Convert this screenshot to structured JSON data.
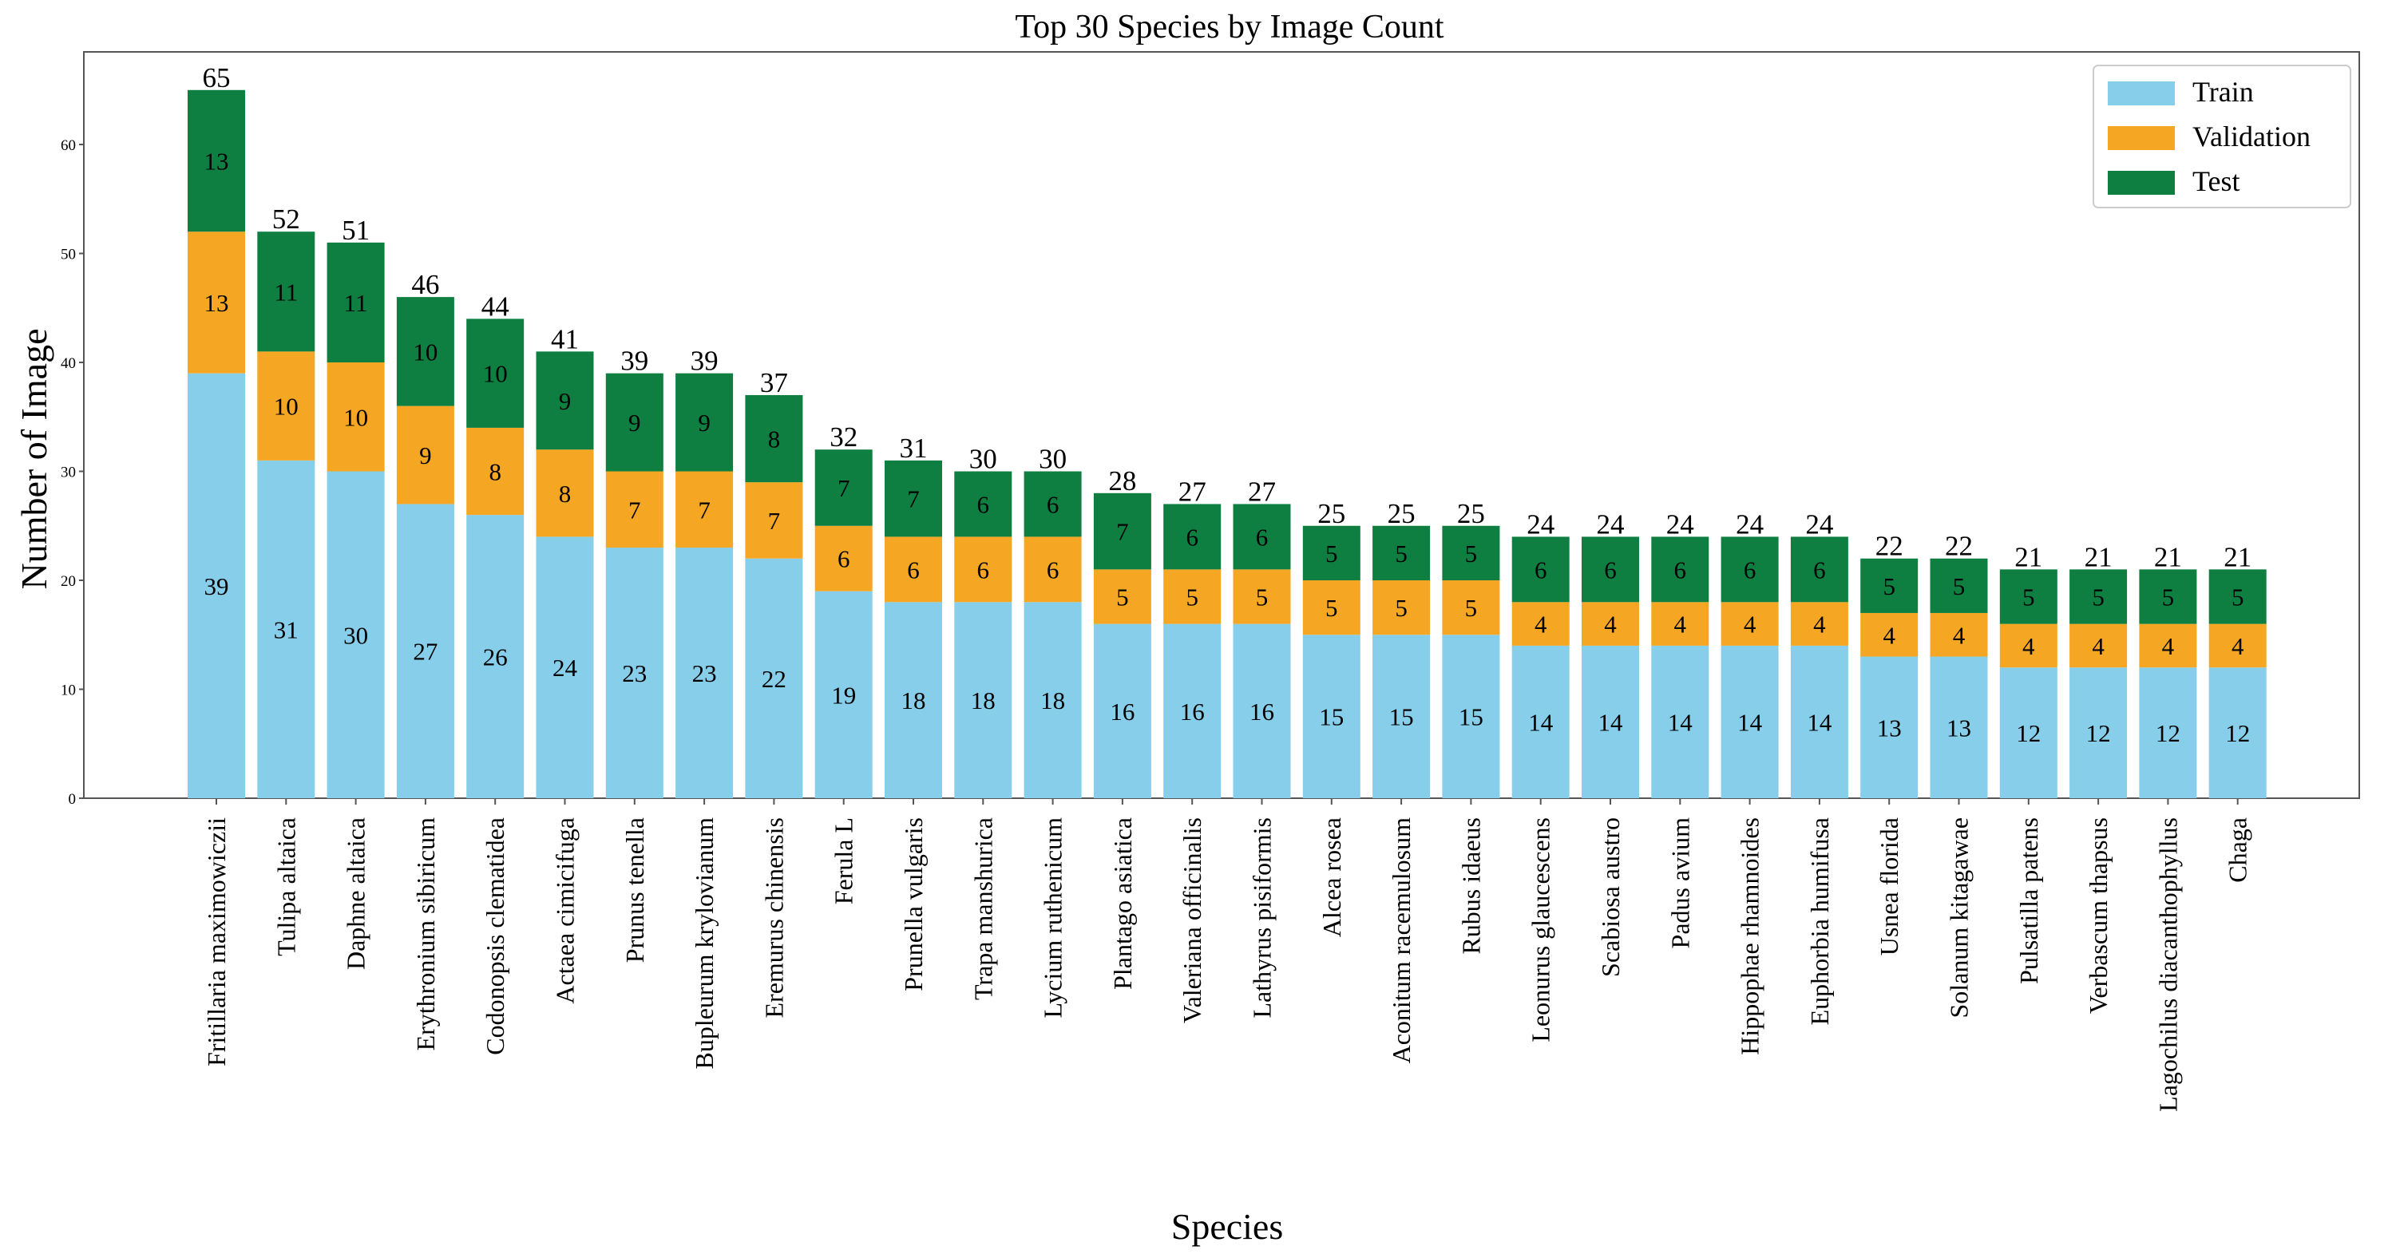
{
  "chart_data": {
    "type": "bar",
    "stacked": true,
    "title": "Top 30 Species by Image Count",
    "xlabel": "Species",
    "ylabel": "Number  of  Image",
    "ylim": [
      0,
      68.5
    ],
    "yticks": [
      0,
      10,
      20,
      30,
      40,
      50,
      60
    ],
    "legend_position": "top-right",
    "categories": [
      "Fritillaria maximowiczii",
      "Tulipa altaica",
      "Daphne altaica",
      "Erythronium sibiricum",
      "Codonopsis clematidea",
      "Actaea cimicifuga",
      "Prunus tenella",
      "Bupleurum krylovianum",
      "Eremurus chinensis",
      "Ferula L",
      "Prunella vulgaris",
      "Trapa manshurica",
      "Lycium ruthenicum",
      "Plantago asiatica",
      "Valeriana officinalis",
      "Lathyrus pisiformis",
      "Alcea rosea",
      "Aconitum racemulosum",
      "Rubus idaeus",
      "Leonurus glaucescens",
      "Scabiosa austro",
      "Padus avium",
      "Hippophae rhamnoides",
      "Euphorbia humifusa",
      "Usnea florida",
      "Solanum kitagawae",
      "Pulsatilla patens",
      "Verbascum thapsus",
      "Lagochilus diacanthophyllus",
      "Chaga"
    ],
    "series": [
      {
        "name": "Train",
        "color": "#87ceeb",
        "values": [
          39,
          31,
          30,
          27,
          26,
          24,
          23,
          23,
          22,
          19,
          18,
          18,
          18,
          16,
          16,
          16,
          15,
          15,
          15,
          14,
          14,
          14,
          14,
          14,
          13,
          13,
          12,
          12,
          12,
          12
        ]
      },
      {
        "name": "Validation",
        "color": "#f5a623",
        "values": [
          13,
          10,
          10,
          9,
          8,
          8,
          7,
          7,
          7,
          6,
          6,
          6,
          6,
          5,
          5,
          5,
          5,
          5,
          5,
          4,
          4,
          4,
          4,
          4,
          4,
          4,
          4,
          4,
          4,
          4
        ]
      },
      {
        "name": "Test",
        "color": "#0f7f41",
        "values": [
          13,
          11,
          11,
          10,
          10,
          9,
          9,
          9,
          8,
          7,
          7,
          6,
          6,
          7,
          6,
          6,
          5,
          5,
          5,
          6,
          6,
          6,
          6,
          6,
          5,
          5,
          5,
          5,
          5,
          5
        ]
      }
    ],
    "totals": [
      65,
      52,
      51,
      46,
      44,
      41,
      39,
      39,
      37,
      32,
      31,
      30,
      30,
      28,
      27,
      27,
      25,
      25,
      25,
      24,
      24,
      24,
      24,
      24,
      22,
      22,
      21,
      21,
      21,
      21
    ]
  }
}
